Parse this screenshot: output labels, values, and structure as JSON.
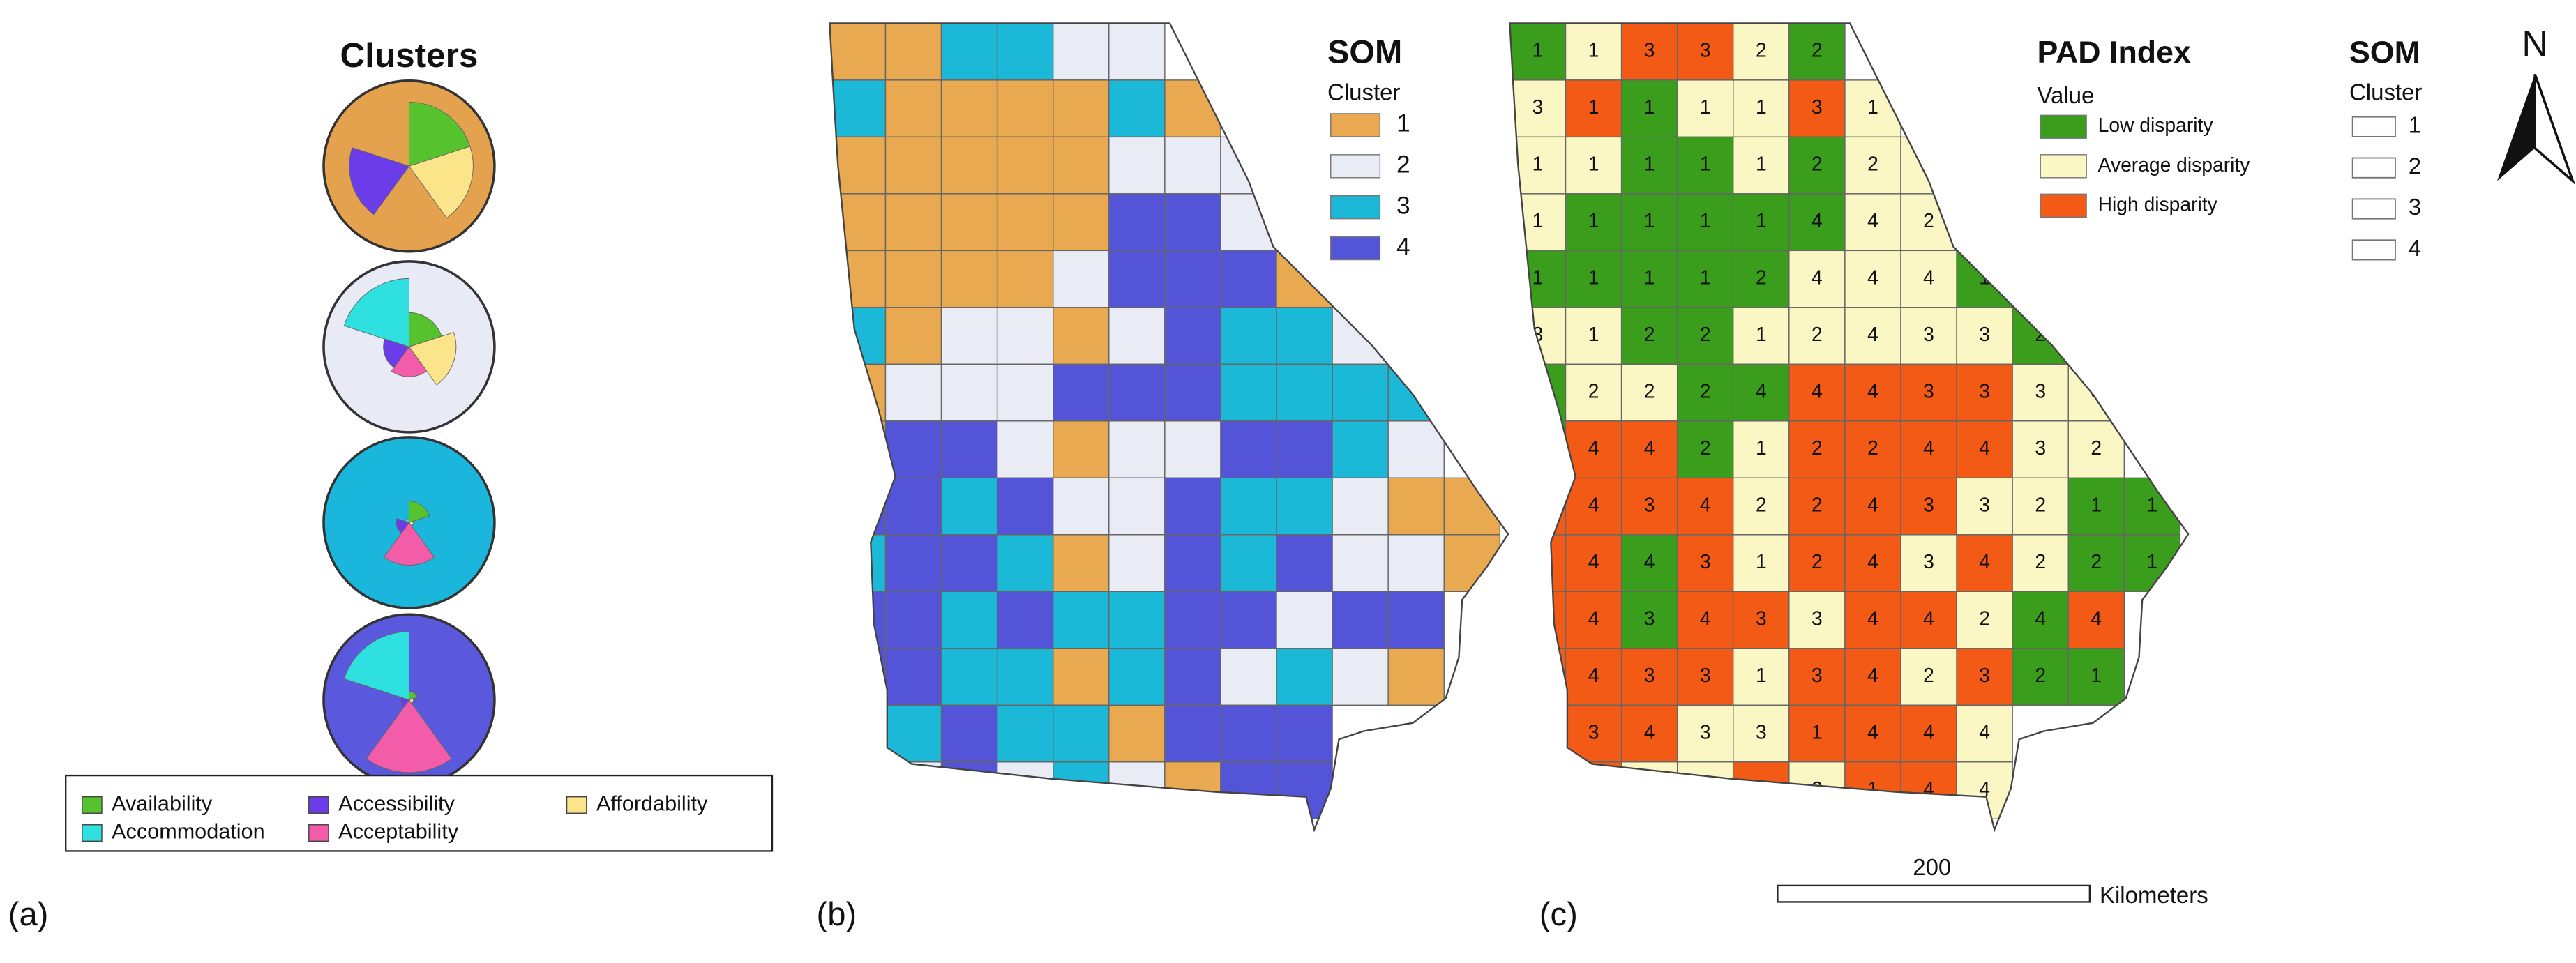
{
  "panel_a": {
    "label": "(a)",
    "title": "Clusters",
    "legend": [
      {
        "name": "Availability",
        "color": "#55c22e"
      },
      {
        "name": "Accommodation",
        "color": "#2ee0df"
      },
      {
        "name": "Accessibility",
        "color": "#6b3de8"
      },
      {
        "name": "Acceptability",
        "color": "#f25ca8"
      },
      {
        "name": "Affordability",
        "color": "#fbe48a"
      }
    ],
    "roses": [
      {
        "background": "#e4a24e",
        "petals": [
          0.75,
          0,
          0.7,
          0,
          0.75
        ]
      },
      {
        "background": "#e8eaf5",
        "petals": [
          0.4,
          0.8,
          0.3,
          0.35,
          0.55
        ]
      },
      {
        "background": "#1bb6dc",
        "petals": [
          0.25,
          0.05,
          0.15,
          0.5,
          0.05
        ]
      },
      {
        "background": "#5a58dc",
        "petals": [
          0.1,
          0.8,
          0.1,
          0.85,
          0.05
        ]
      }
    ]
  },
  "panel_b": {
    "label": "(b)",
    "legend_title": "SOM",
    "legend_subtitle": "Cluster",
    "legend": [
      {
        "name": "1",
        "color": "#e8a951"
      },
      {
        "name": "2",
        "color": "#e9ebf5"
      },
      {
        "name": "3",
        "color": "#1cb8d8"
      },
      {
        "name": "4",
        "color": "#5454d8"
      }
    ],
    "clusters": [
      [
        1,
        1,
        3,
        3,
        2,
        2,
        null,
        null,
        null,
        null,
        null,
        null
      ],
      [
        3,
        1,
        1,
        1,
        1,
        3,
        1,
        null,
        null,
        null,
        null,
        null
      ],
      [
        1,
        1,
        1,
        1,
        1,
        2,
        2,
        2,
        null,
        null,
        null,
        null
      ],
      [
        1,
        1,
        1,
        1,
        1,
        4,
        4,
        2,
        null,
        null,
        null,
        null
      ],
      [
        1,
        1,
        1,
        1,
        2,
        4,
        4,
        4,
        1,
        null,
        null,
        null
      ],
      [
        3,
        1,
        2,
        2,
        1,
        2,
        4,
        3,
        3,
        2,
        null,
        null
      ],
      [
        1,
        2,
        2,
        2,
        4,
        4,
        4,
        3,
        3,
        3,
        3,
        null
      ],
      [
        1,
        4,
        4,
        2,
        1,
        2,
        2,
        4,
        4,
        3,
        2,
        null
      ],
      [
        4,
        4,
        3,
        4,
        2,
        2,
        4,
        3,
        3,
        2,
        1,
        1
      ],
      [
        3,
        4,
        4,
        3,
        1,
        2,
        4,
        3,
        4,
        2,
        2,
        1
      ],
      [
        4,
        4,
        3,
        4,
        3,
        3,
        4,
        4,
        2,
        4,
        4,
        null
      ],
      [
        4,
        4,
        3,
        3,
        1,
        3,
        4,
        2,
        3,
        2,
        1,
        null
      ],
      [
        null,
        3,
        4,
        3,
        3,
        1,
        4,
        4,
        4,
        null,
        null,
        null
      ],
      [
        null,
        2,
        4,
        2,
        3,
        2,
        1,
        4,
        4,
        null,
        null,
        null
      ]
    ]
  },
  "panel_c": {
    "label": "(c)",
    "legend_title": "PAD Index",
    "legend_subtitle": "Value",
    "legend": [
      {
        "name": "Low disparity",
        "color": "#3a9e1c"
      },
      {
        "name": "Average disparity",
        "color": "#fbf7c4"
      },
      {
        "name": "High disparity",
        "color": "#f25a15"
      }
    ],
    "som_legend_title": "SOM",
    "som_legend_subtitle": "Cluster",
    "som_legend": [
      "1",
      "2",
      "3",
      "4"
    ],
    "disparity": [
      [
        0,
        1,
        2,
        2,
        1,
        0,
        null,
        null,
        null,
        null,
        null,
        null
      ],
      [
        1,
        2,
        0,
        1,
        1,
        2,
        1,
        null,
        null,
        null,
        null,
        null
      ],
      [
        1,
        1,
        0,
        0,
        1,
        0,
        1,
        1,
        null,
        null,
        null,
        null
      ],
      [
        1,
        0,
        0,
        0,
        0,
        0,
        1,
        1,
        null,
        null,
        null,
        null
      ],
      [
        0,
        0,
        0,
        0,
        0,
        1,
        1,
        1,
        0,
        null,
        null,
        null
      ],
      [
        1,
        1,
        0,
        0,
        1,
        1,
        1,
        1,
        1,
        0,
        null,
        null
      ],
      [
        0,
        1,
        1,
        0,
        0,
        2,
        2,
        2,
        2,
        1,
        1,
        null
      ],
      [
        0,
        2,
        2,
        0,
        1,
        2,
        2,
        2,
        2,
        1,
        1,
        null
      ],
      [
        2,
        2,
        2,
        2,
        1,
        2,
        2,
        2,
        1,
        1,
        0,
        0
      ],
      [
        2,
        2,
        0,
        2,
        1,
        2,
        2,
        1,
        2,
        1,
        0,
        0
      ],
      [
        2,
        2,
        0,
        2,
        2,
        1,
        2,
        2,
        1,
        0,
        2,
        null
      ],
      [
        2,
        2,
        2,
        2,
        1,
        2,
        2,
        1,
        2,
        0,
        0,
        null
      ],
      [
        null,
        2,
        2,
        1,
        1,
        2,
        2,
        2,
        1,
        null,
        null,
        null
      ],
      [
        null,
        2,
        1,
        1,
        2,
        1,
        2,
        2,
        1,
        null,
        null,
        null
      ]
    ],
    "north": "N",
    "scale_value": "200",
    "scale_unit": "Kilometers"
  }
}
